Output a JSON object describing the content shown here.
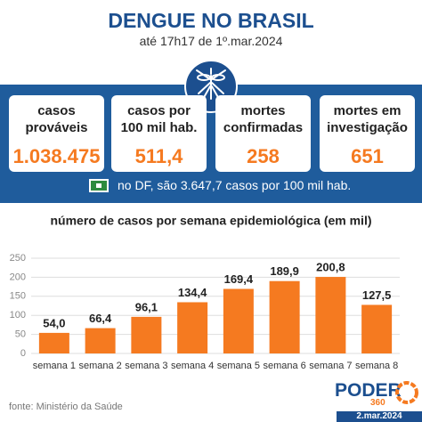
{
  "header": {
    "title": "DENGUE NO BRASIL",
    "subtitle": "até 17h17 de 1º.mar.2024"
  },
  "cards": [
    {
      "label": "casos prováveis",
      "value": "1.038.475"
    },
    {
      "label": "casos por 100 mil hab.",
      "value": "511,4"
    },
    {
      "label": "mortes confirmadas",
      "value": "258"
    },
    {
      "label": "mortes em investigação",
      "value": "651"
    }
  ],
  "note": "no DF, são 3.647,7 casos por 100 mil hab.",
  "chart_data": {
    "type": "bar",
    "title": "número de casos por semana epidemiológica (em mil)",
    "categories": [
      "semana 1",
      "semana 2",
      "semana 3",
      "semana 4",
      "semana 5",
      "semana 6",
      "semana 7",
      "semana 8"
    ],
    "values": [
      54.0,
      66.4,
      96.1,
      134.4,
      169.4,
      189.9,
      200.8,
      127.5
    ],
    "value_labels": [
      "54,0",
      "66,4",
      "96,1",
      "134,4",
      "169,4",
      "189,9",
      "200,8",
      "127,5"
    ],
    "color": "#f57a20",
    "ylim": [
      0,
      250
    ],
    "yticks": [
      0,
      50,
      100,
      150,
      200,
      250
    ],
    "grid": true
  },
  "footer": {
    "source": "fonte: Ministério da Saúde",
    "logo": "PODER",
    "logo_sub": "360",
    "date": "2.mar.2024"
  }
}
